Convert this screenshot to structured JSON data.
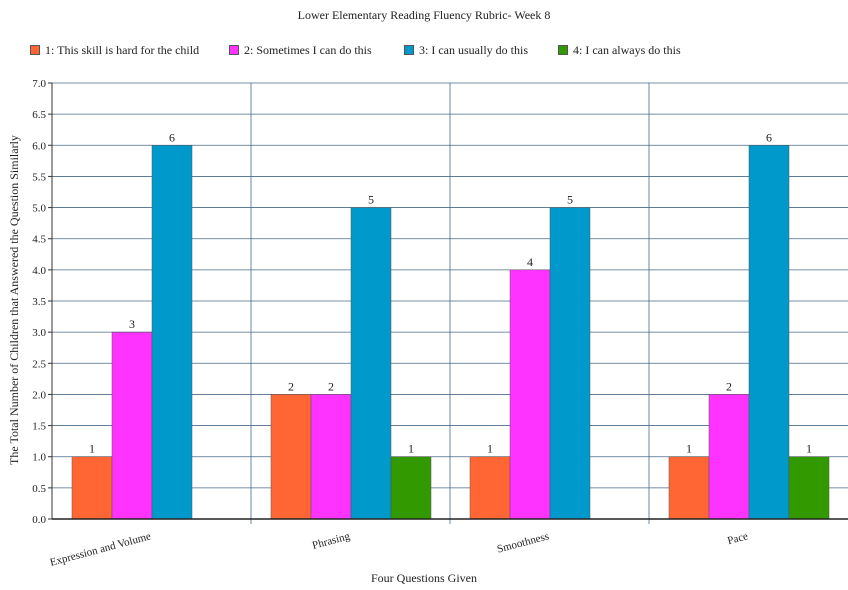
{
  "chart_data": {
    "type": "bar",
    "title": "Lower Elementary Reading Fluency Rubric- Week 8",
    "xlabel": "Four Questions Given",
    "ylabel": "The Total Number of Children that Answered the Question Similarly",
    "categories": [
      "Expression and Volume",
      "Phrasing",
      "Smoothness",
      "Pace"
    ],
    "series": [
      {
        "name": "1: This skill is hard for the child",
        "color": "#ff6633",
        "values": [
          1,
          2,
          1,
          1
        ]
      },
      {
        "name": "2: Sometimes I can do this",
        "color": "#ff33ff",
        "values": [
          3,
          2,
          4,
          2
        ]
      },
      {
        "name": "3: I can usually do this",
        "color": "#0099cc",
        "values": [
          6,
          5,
          5,
          6
        ]
      },
      {
        "name": "4: I can always do this",
        "color": "#339900",
        "values": [
          null,
          1,
          null,
          1
        ]
      }
    ],
    "ylim": [
      0,
      7
    ],
    "ytick_step": 0.5,
    "grid": true,
    "legend_position": "top-left",
    "data_labels": true
  }
}
